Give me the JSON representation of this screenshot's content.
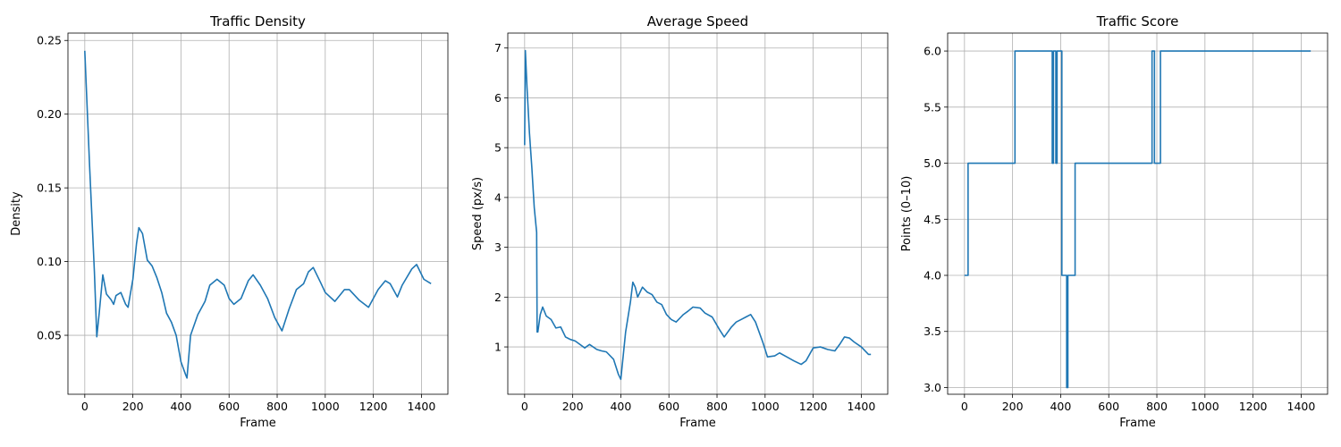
{
  "chart_data": [
    {
      "type": "line",
      "title": "Traffic Density",
      "xlabel": "Frame",
      "ylabel": "Density",
      "xlim": [
        -70,
        1510
      ],
      "ylim": [
        0.01,
        0.255
      ],
      "xticks": [
        0,
        200,
        400,
        600,
        800,
        1000,
        1200,
        1400
      ],
      "yticks": [
        0.05,
        0.1,
        0.15,
        0.2,
        0.25
      ],
      "ytick_labels": [
        "0.05",
        "0.10",
        "0.15",
        "0.20",
        "0.25"
      ],
      "grid": true,
      "line_color": "#1f77b4",
      "series": [
        {
          "x": [
            0,
            20,
            40,
            50,
            60,
            75,
            90,
            110,
            120,
            130,
            150,
            170,
            180,
            200,
            215,
            225,
            240,
            260,
            280,
            300,
            320,
            340,
            360,
            380,
            400,
            420,
            425,
            440,
            470,
            500,
            520,
            550,
            580,
            600,
            620,
            650,
            680,
            700,
            730,
            760,
            790,
            820,
            850,
            880,
            910,
            930,
            950,
            980,
            1000,
            1040,
            1080,
            1100,
            1140,
            1180,
            1220,
            1250,
            1270,
            1300,
            1320,
            1360,
            1380,
            1410,
            1440
          ],
          "y": [
            0.243,
            0.165,
            0.093,
            0.049,
            0.065,
            0.091,
            0.078,
            0.074,
            0.071,
            0.077,
            0.079,
            0.071,
            0.069,
            0.088,
            0.112,
            0.123,
            0.119,
            0.101,
            0.097,
            0.089,
            0.079,
            0.065,
            0.059,
            0.05,
            0.032,
            0.023,
            0.021,
            0.05,
            0.064,
            0.073,
            0.084,
            0.088,
            0.084,
            0.075,
            0.071,
            0.075,
            0.087,
            0.091,
            0.084,
            0.075,
            0.062,
            0.053,
            0.068,
            0.081,
            0.085,
            0.093,
            0.096,
            0.086,
            0.079,
            0.073,
            0.081,
            0.081,
            0.074,
            0.069,
            0.081,
            0.087,
            0.085,
            0.076,
            0.084,
            0.095,
            0.098,
            0.088,
            0.085
          ]
        }
      ]
    },
    {
      "type": "line",
      "title": "Average Speed",
      "xlabel": "Frame",
      "ylabel": "Speed (px/s)",
      "xlim": [
        -70,
        1510
      ],
      "ylim": [
        0.05,
        7.3
      ],
      "xticks": [
        0,
        200,
        400,
        600,
        800,
        1000,
        1200,
        1400
      ],
      "yticks": [
        1,
        2,
        3,
        4,
        5,
        6,
        7
      ],
      "ytick_labels": [
        "1",
        "2",
        "3",
        "4",
        "5",
        "6",
        "7"
      ],
      "grid": true,
      "line_color": "#1f77b4",
      "series": [
        {
          "x": [
            0,
            3,
            10,
            20,
            30,
            40,
            50,
            52,
            55,
            65,
            75,
            90,
            110,
            130,
            150,
            170,
            190,
            210,
            230,
            250,
            270,
            300,
            320,
            340,
            370,
            390,
            400,
            420,
            440,
            450,
            460,
            470,
            490,
            510,
            530,
            550,
            570,
            590,
            610,
            630,
            660,
            680,
            700,
            730,
            750,
            780,
            810,
            830,
            860,
            880,
            900,
            920,
            940,
            960,
            990,
            1010,
            1040,
            1060,
            1090,
            1120,
            1150,
            1170,
            1200,
            1230,
            1260,
            1290,
            1310,
            1330,
            1350,
            1370,
            1400,
            1430,
            1440
          ],
          "y": [
            5.05,
            6.95,
            6.2,
            5.3,
            4.6,
            3.8,
            3.3,
            1.3,
            1.3,
            1.65,
            1.8,
            1.62,
            1.55,
            1.38,
            1.4,
            1.2,
            1.15,
            1.12,
            1.05,
            0.98,
            1.05,
            0.95,
            0.92,
            0.9,
            0.75,
            0.45,
            0.35,
            1.3,
            1.9,
            2.3,
            2.2,
            2.0,
            2.2,
            2.1,
            2.05,
            1.9,
            1.85,
            1.65,
            1.55,
            1.5,
            1.65,
            1.72,
            1.8,
            1.78,
            1.68,
            1.6,
            1.35,
            1.2,
            1.4,
            1.5,
            1.55,
            1.6,
            1.65,
            1.5,
            1.1,
            0.8,
            0.82,
            0.88,
            0.8,
            0.72,
            0.65,
            0.72,
            0.98,
            1.0,
            0.95,
            0.92,
            1.05,
            1.2,
            1.18,
            1.1,
            1.0,
            0.85,
            0.85
          ]
        }
      ]
    },
    {
      "type": "line",
      "title": "Traffic Score",
      "xlabel": "Frame",
      "ylabel": "Points (0–10)",
      "xlim": [
        -70,
        1510
      ],
      "ylim": [
        2.94,
        6.16
      ],
      "xticks": [
        0,
        200,
        400,
        600,
        800,
        1000,
        1200,
        1400
      ],
      "yticks": [
        3.0,
        3.5,
        4.0,
        4.5,
        5.0,
        5.5,
        6.0
      ],
      "ytick_labels": [
        "3.0",
        "3.5",
        "4.0",
        "4.5",
        "5.0",
        "5.5",
        "6.0"
      ],
      "grid": true,
      "line_color": "#1f77b4",
      "series": [
        {
          "x": [
            0,
            15,
            15,
            210,
            210,
            365,
            365,
            370,
            370,
            380,
            380,
            385,
            385,
            405,
            405,
            425,
            425,
            430,
            430,
            460,
            460,
            780,
            780,
            790,
            790,
            815,
            815,
            1440
          ],
          "y": [
            4,
            4,
            5,
            5,
            6,
            6,
            5,
            5,
            6,
            6,
            5,
            5,
            6,
            6,
            4,
            4,
            3,
            3,
            4,
            4,
            5,
            5,
            6,
            6,
            5,
            5,
            6,
            6
          ]
        }
      ]
    }
  ]
}
